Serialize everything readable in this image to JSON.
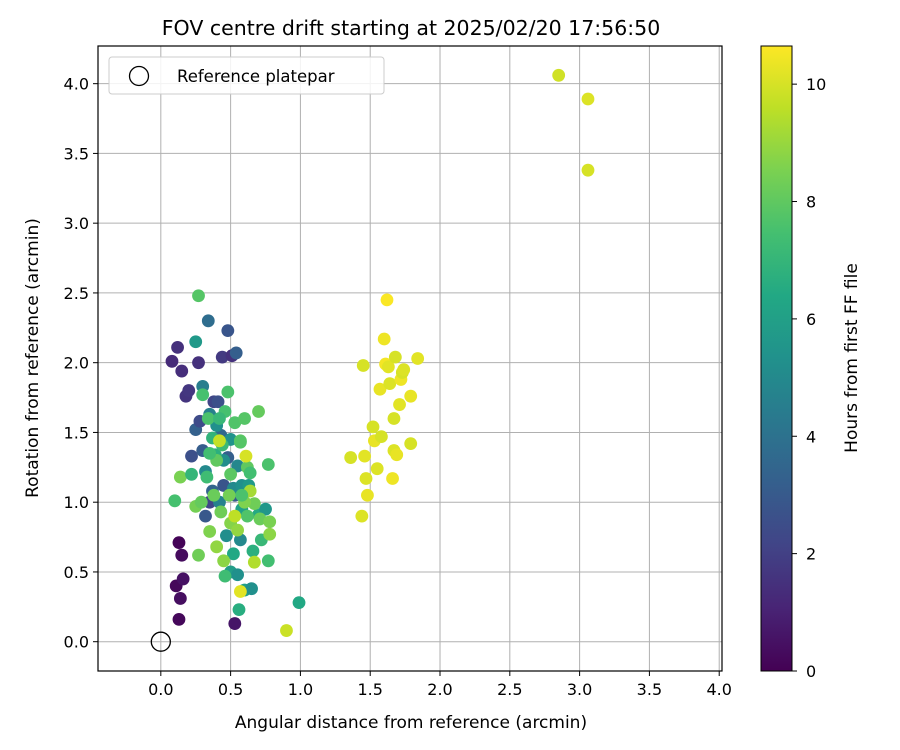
{
  "chart_data": {
    "type": "scatter",
    "title": "FOV centre drift starting at 2025/02/20 17:56:50",
    "xlabel": "Angular distance from reference (arcmin)",
    "ylabel": "Rotation from reference (arcmin)",
    "xlim": [
      -0.45,
      4.02
    ],
    "ylim": [
      -0.21,
      4.27
    ],
    "xticks": [
      "0.0",
      "0.5",
      "1.0",
      "1.5",
      "2.0",
      "2.5",
      "3.0",
      "3.5",
      "4.0"
    ],
    "yticks": [
      "0.0",
      "0.5",
      "1.0",
      "1.5",
      "2.0",
      "2.5",
      "3.0",
      "3.5",
      "4.0"
    ],
    "grid": true,
    "legend": {
      "position": "upper-left",
      "entries": [
        "Reference platepar"
      ]
    },
    "colormap": "viridis",
    "colorbar": {
      "label": "Hours from first FF file",
      "range": [
        0,
        10.65
      ],
      "ticks": [
        "0",
        "2",
        "4",
        "6",
        "8",
        "10"
      ]
    },
    "reference_point": {
      "x": 0.0,
      "y": 0.0
    },
    "points": [
      [
        0.08,
        2.01,
        1.3
      ],
      [
        0.12,
        2.11,
        1.5
      ],
      [
        0.15,
        1.94,
        1.4
      ],
      [
        0.18,
        1.76,
        1.6
      ],
      [
        0.2,
        1.8,
        1.7
      ],
      [
        0.27,
        2.0,
        1.5
      ],
      [
        0.34,
        2.3,
        3.8
      ],
      [
        0.44,
        2.04,
        1.8
      ],
      [
        0.48,
        2.23,
        2.8
      ],
      [
        0.51,
        2.05,
        1.5
      ],
      [
        0.54,
        2.07,
        3.2
      ],
      [
        0.22,
        1.33,
        2.6
      ],
      [
        0.25,
        1.52,
        3.3
      ],
      [
        0.28,
        1.58,
        2.4
      ],
      [
        0.3,
        1.37,
        3.1
      ],
      [
        0.32,
        0.9,
        2.9
      ],
      [
        0.35,
        1.0,
        2.2
      ],
      [
        0.38,
        1.72,
        2.2
      ],
      [
        0.41,
        1.72,
        2.6
      ],
      [
        0.45,
        1.12,
        2.8
      ],
      [
        0.43,
        1.48,
        3.6
      ],
      [
        0.37,
        1.08,
        3.4
      ],
      [
        0.53,
        1.05,
        3.0
      ],
      [
        0.48,
        1.32,
        3.2
      ],
      [
        0.13,
        0.71,
        0.1
      ],
      [
        0.15,
        0.62,
        0.3
      ],
      [
        0.11,
        0.4,
        0.2
      ],
      [
        0.14,
        0.31,
        0.4
      ],
      [
        0.16,
        0.45,
        0.5
      ],
      [
        0.13,
        0.16,
        0.2
      ],
      [
        0.53,
        0.13,
        0.6
      ],
      [
        0.25,
        2.15,
        5.7
      ],
      [
        0.3,
        1.83,
        4.5
      ],
      [
        0.35,
        1.63,
        4.6
      ],
      [
        0.32,
        1.22,
        5.0
      ],
      [
        0.42,
        1.0,
        4.7
      ],
      [
        0.45,
        1.3,
        5.2
      ],
      [
        0.5,
        1.45,
        5.4
      ],
      [
        0.55,
        1.26,
        4.9
      ],
      [
        0.52,
        1.1,
        5.0
      ],
      [
        0.58,
        1.12,
        5.3
      ],
      [
        0.4,
        1.55,
        5.3
      ],
      [
        0.47,
        0.76,
        5.2
      ],
      [
        0.5,
        0.5,
        5.9
      ],
      [
        0.52,
        0.63,
        6.4
      ],
      [
        0.55,
        0.48,
        5.3
      ],
      [
        0.57,
        0.73,
        5.0
      ],
      [
        0.58,
        0.95,
        6.1
      ],
      [
        0.6,
        0.37,
        6.0
      ],
      [
        0.63,
        1.12,
        5.7
      ],
      [
        0.65,
        0.38,
        5.3
      ],
      [
        0.66,
        0.65,
        6.7
      ],
      [
        0.7,
        0.91,
        6.5
      ],
      [
        0.72,
        0.73,
        7.1
      ],
      [
        0.75,
        0.95,
        5.6
      ],
      [
        0.56,
        0.23,
        6.6
      ],
      [
        0.99,
        0.28,
        6.4
      ],
      [
        0.27,
        2.48,
        7.8
      ],
      [
        0.3,
        1.77,
        7.5
      ],
      [
        0.34,
        1.6,
        7.6
      ],
      [
        0.37,
        1.46,
        6.9
      ],
      [
        0.33,
        1.18,
        7.3
      ],
      [
        0.39,
        1.34,
        6.7
      ],
      [
        0.44,
        1.41,
        7.2
      ],
      [
        0.46,
        1.65,
        7.5
      ],
      [
        0.48,
        1.79,
        7.6
      ],
      [
        0.53,
        1.57,
        7.7
      ],
      [
        0.57,
        1.44,
        7.9
      ],
      [
        0.6,
        1.6,
        7.8
      ],
      [
        0.62,
        1.25,
        8.0
      ],
      [
        0.64,
        1.21,
        7.4
      ],
      [
        0.7,
        1.65,
        8.1
      ],
      [
        0.67,
        0.99,
        8.3
      ],
      [
        0.71,
        0.88,
        8.2
      ],
      [
        0.77,
        1.27,
        7.6
      ],
      [
        0.78,
        0.86,
        8.5
      ],
      [
        0.77,
        0.58,
        7.4
      ],
      [
        0.1,
        1.01,
        7.5
      ],
      [
        0.14,
        1.18,
        8.5
      ],
      [
        0.22,
        1.2,
        7.0
      ],
      [
        0.27,
        0.62,
        8.3
      ],
      [
        0.25,
        0.97,
        8.4
      ],
      [
        0.29,
        1.0,
        8.1
      ],
      [
        0.35,
        0.79,
        8.6
      ],
      [
        0.38,
        1.05,
        8.2
      ],
      [
        0.4,
        0.68,
        8.9
      ],
      [
        0.43,
        0.93,
        8.3
      ],
      [
        0.45,
        0.58,
        8.8
      ],
      [
        0.46,
        0.47,
        7.3
      ],
      [
        0.5,
        0.85,
        8.7
      ],
      [
        0.49,
        1.05,
        8.4
      ],
      [
        0.55,
        0.8,
        8.9
      ],
      [
        0.57,
        1.43,
        7.8
      ],
      [
        0.6,
        1.0,
        8.6
      ],
      [
        0.67,
        0.57,
        9.4
      ],
      [
        0.64,
        1.08,
        9.2
      ],
      [
        0.78,
        0.77,
        8.8
      ],
      [
        0.4,
        1.3,
        8.0
      ],
      [
        0.42,
        1.6,
        7.1
      ],
      [
        0.35,
        1.35,
        7.4
      ],
      [
        0.5,
        1.2,
        7.9
      ],
      [
        0.58,
        1.05,
        7.6
      ],
      [
        0.62,
        0.9,
        7.7
      ],
      [
        0.57,
        0.36,
        10.2
      ],
      [
        0.9,
        0.08,
        9.8
      ],
      [
        0.42,
        1.44,
        9.7
      ],
      [
        0.61,
        1.33,
        10.0
      ],
      [
        0.53,
        0.9,
        9.6
      ],
      [
        1.36,
        1.32,
        10.0
      ],
      [
        1.44,
        0.9,
        10.1
      ],
      [
        1.45,
        1.98,
        10.0
      ],
      [
        1.46,
        1.33,
        10.2
      ],
      [
        1.47,
        1.17,
        10.1
      ],
      [
        1.48,
        1.05,
        10.3
      ],
      [
        1.52,
        1.54,
        10.0
      ],
      [
        1.53,
        1.44,
        10.3
      ],
      [
        1.55,
        1.24,
        10.1
      ],
      [
        1.57,
        1.81,
        10.3
      ],
      [
        1.58,
        1.47,
        10.0
      ],
      [
        1.6,
        2.17,
        10.4
      ],
      [
        1.62,
        2.45,
        10.6
      ],
      [
        1.61,
        1.99,
        10.5
      ],
      [
        1.63,
        1.97,
        10.2
      ],
      [
        1.64,
        1.85,
        10.1
      ],
      [
        1.66,
        1.17,
        10.4
      ],
      [
        1.67,
        1.37,
        10.1
      ],
      [
        1.68,
        2.04,
        10.0
      ],
      [
        1.69,
        1.34,
        10.3
      ],
      [
        1.67,
        1.6,
        10.0
      ],
      [
        1.71,
        1.7,
        10.2
      ],
      [
        1.72,
        1.88,
        10.4
      ],
      [
        1.73,
        1.93,
        10.0
      ],
      [
        1.74,
        1.95,
        10.1
      ],
      [
        1.79,
        1.76,
        10.3
      ],
      [
        1.79,
        1.42,
        10.0
      ],
      [
        1.84,
        2.03,
        10.2
      ],
      [
        2.85,
        4.06,
        9.9
      ],
      [
        3.06,
        3.38,
        10.0
      ],
      [
        3.06,
        3.89,
        10.1
      ]
    ]
  }
}
